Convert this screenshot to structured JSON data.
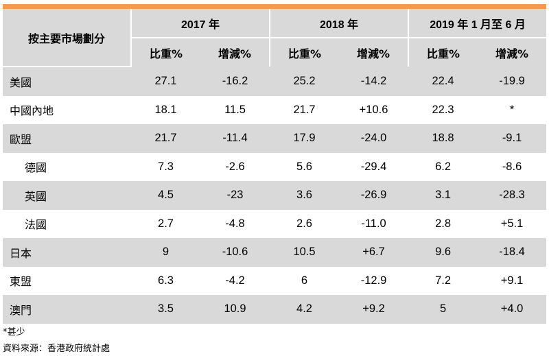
{
  "header": {
    "market_label": "按主要市場劃分",
    "periods": [
      "2017 年",
      "2018 年",
      "2019 年 1 月至 6 月"
    ],
    "sub_labels": [
      "比重%",
      "增減%",
      "比重%",
      "增減%",
      "比重%",
      "增減%"
    ]
  },
  "rows": [
    {
      "label": "美國",
      "values": [
        "27.1",
        "-16.2",
        "25.2",
        "-14.2",
        "22.4",
        "-19.9"
      ]
    },
    {
      "label": "中國內地",
      "values": [
        "18.1",
        "11.5",
        "21.7",
        "+10.6",
        "22.3",
        "*"
      ]
    },
    {
      "label": "歐盟",
      "values": [
        "21.7",
        "-11.4",
        "17.9",
        "-24.0",
        "18.8",
        "-9.1"
      ]
    },
    {
      "label": "德國",
      "values": [
        "7.3",
        "-2.6",
        "5.6",
        "-29.4",
        "6.2",
        "-8.6"
      ]
    },
    {
      "label": "英國",
      "values": [
        "4.5",
        "-23",
        "3.6",
        "-26.9",
        "3.1",
        "-28.3"
      ]
    },
    {
      "label": "法國",
      "values": [
        "2.7",
        "-4.8",
        "2.6",
        "-11.0",
        "2.8",
        "+5.1"
      ]
    },
    {
      "label": "日本",
      "values": [
        "9",
        "-10.6",
        "10.5",
        "+6.7",
        "9.6",
        "-18.4"
      ]
    },
    {
      "label": "東盟",
      "values": [
        "6.3",
        "-4.2",
        "6",
        "-12.9",
        "7.2",
        "+9.1"
      ]
    },
    {
      "label": "澳門",
      "values": [
        "3.5",
        "10.9",
        "4.2",
        "+9.2",
        "5",
        "+4.0"
      ]
    }
  ],
  "footnote": "*甚少",
  "source": "資料來源：香港政府統計處",
  "colors": {
    "accent_bar": "#f29b4c",
    "shade": "#d9d9d9"
  }
}
